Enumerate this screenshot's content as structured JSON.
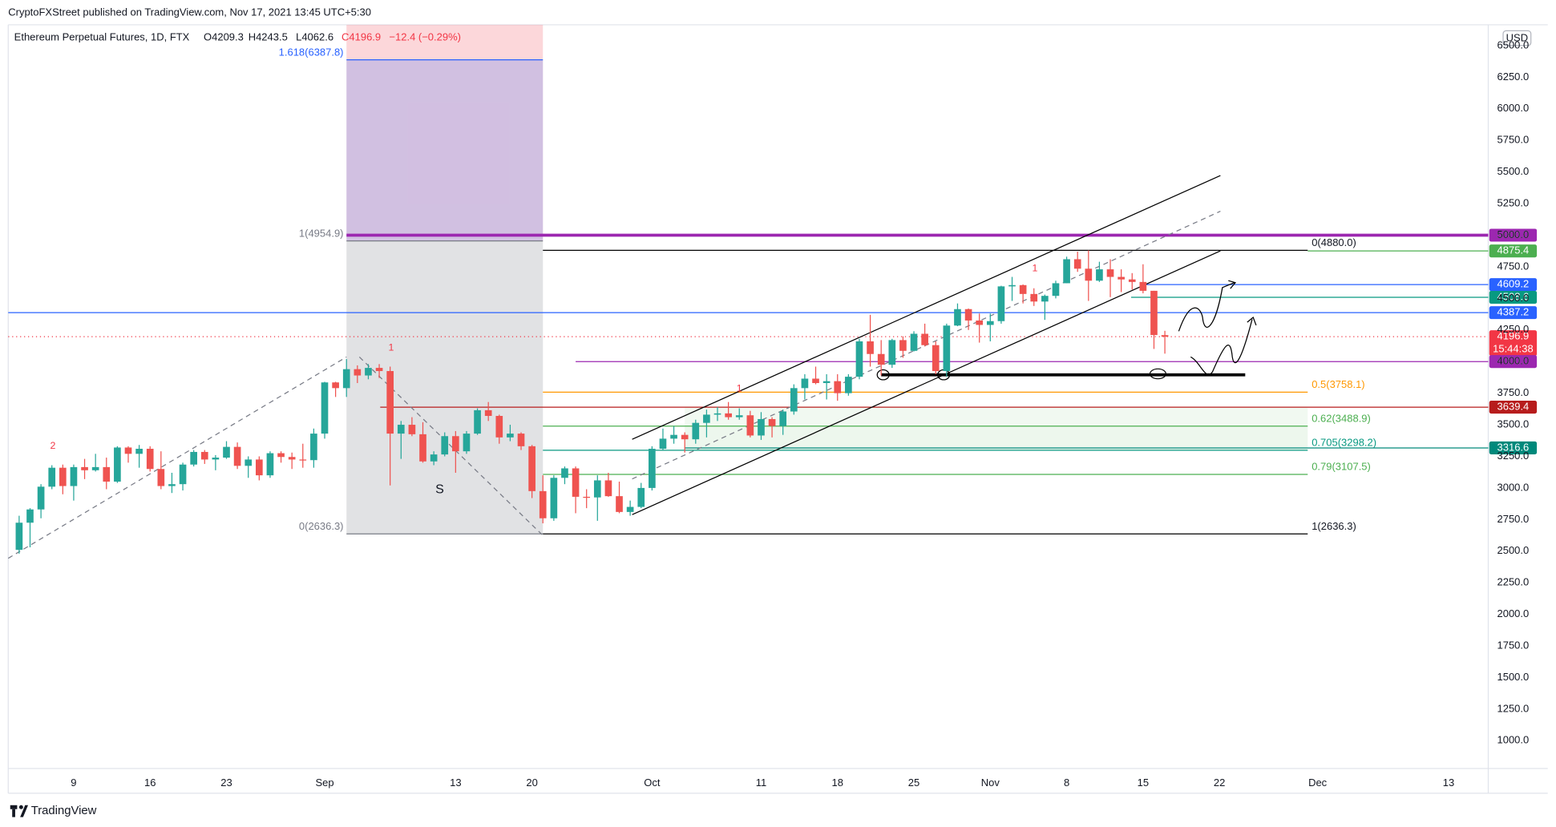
{
  "header": {
    "publisher": "CryptoFXStreet published on TradingView.com, Nov 17, 2021 13:45 UTC+5:30",
    "brand": "TradingView",
    "currency": "USD"
  },
  "chart_data": {
    "type": "candlestick",
    "title": "Ethereum Perpetual Futures, 1D, FTX",
    "ohlc_label": {
      "open": "O4209.3",
      "high": "H4243.5",
      "low": "L4062.6",
      "close": "C4196.9",
      "change": "−12.4 (−0.29%)"
    },
    "up_color": "#26a69a",
    "down_color": "#ef5350",
    "ylim": [
      780,
      6665
    ],
    "yticks": [
      {
        "value": 1000,
        "label": "1000.0"
      },
      {
        "value": 1250,
        "label": "1250.0"
      },
      {
        "value": 1500,
        "label": "1500.0"
      },
      {
        "value": 1750,
        "label": "1750.0"
      },
      {
        "value": 2000,
        "label": "2000.0"
      },
      {
        "value": 2250,
        "label": "2250.0"
      },
      {
        "value": 2500,
        "label": "2500.0"
      },
      {
        "value": 2750,
        "label": "2750.0"
      },
      {
        "value": 3000,
        "label": "3000.0"
      },
      {
        "value": 3250,
        "label": "3250.0"
      },
      {
        "value": 3500,
        "label": "3500.0"
      },
      {
        "value": 3750,
        "label": "3750.0"
      },
      {
        "value": 4000,
        "label": "4000.0"
      },
      {
        "value": 4250,
        "label": "4250.0"
      },
      {
        "value": 4500,
        "label": "4500.0"
      },
      {
        "value": 4750,
        "label": "4750.0"
      },
      {
        "value": 5000,
        "label": "5000.0"
      },
      {
        "value": 5250,
        "label": "5250.0"
      },
      {
        "value": 5500,
        "label": "5500.0"
      },
      {
        "value": 5750,
        "label": "5750.0"
      },
      {
        "value": 6000,
        "label": "6000.0"
      },
      {
        "value": 6250,
        "label": "6250.0"
      },
      {
        "value": 6500,
        "label": "6500.0"
      }
    ],
    "xticks": [
      {
        "value": "2021-08-09",
        "label": "9"
      },
      {
        "value": "2021-08-16",
        "label": "16"
      },
      {
        "value": "2021-08-23",
        "label": "23"
      },
      {
        "value": "2021-09-01",
        "label": "Sep"
      },
      {
        "value": "2021-09-13",
        "label": "13"
      },
      {
        "value": "2021-09-20",
        "label": "20"
      },
      {
        "value": "2021-10-01",
        "label": "Oct"
      },
      {
        "value": "2021-10-11",
        "label": "11"
      },
      {
        "value": "2021-10-18",
        "label": "18"
      },
      {
        "value": "2021-10-25",
        "label": "25"
      },
      {
        "value": "2021-11-01",
        "label": "Nov"
      },
      {
        "value": "2021-11-08",
        "label": "8"
      },
      {
        "value": "2021-11-15",
        "label": "15"
      },
      {
        "value": "2021-11-22",
        "label": "22"
      },
      {
        "value": "2021-12-01",
        "label": "Dec"
      },
      {
        "value": "2021-12-13",
        "label": "13"
      }
    ],
    "x": [
      "2021-08-04",
      "2021-08-05",
      "2021-08-06",
      "2021-08-07",
      "2021-08-08",
      "2021-08-09",
      "2021-08-10",
      "2021-08-11",
      "2021-08-12",
      "2021-08-13",
      "2021-08-14",
      "2021-08-15",
      "2021-08-16",
      "2021-08-17",
      "2021-08-18",
      "2021-08-19",
      "2021-08-20",
      "2021-08-21",
      "2021-08-22",
      "2021-08-23",
      "2021-08-24",
      "2021-08-25",
      "2021-08-26",
      "2021-08-27",
      "2021-08-28",
      "2021-08-29",
      "2021-08-30",
      "2021-08-31",
      "2021-09-01",
      "2021-09-02",
      "2021-09-03",
      "2021-09-04",
      "2021-09-05",
      "2021-09-06",
      "2021-09-07",
      "2021-09-08",
      "2021-09-09",
      "2021-09-10",
      "2021-09-11",
      "2021-09-12",
      "2021-09-13",
      "2021-09-14",
      "2021-09-15",
      "2021-09-16",
      "2021-09-17",
      "2021-09-18",
      "2021-09-19",
      "2021-09-20",
      "2021-09-21",
      "2021-09-22",
      "2021-09-23",
      "2021-09-24",
      "2021-09-25",
      "2021-09-26",
      "2021-09-27",
      "2021-09-28",
      "2021-09-29",
      "2021-09-30",
      "2021-10-01",
      "2021-10-02",
      "2021-10-03",
      "2021-10-04",
      "2021-10-05",
      "2021-10-06",
      "2021-10-07",
      "2021-10-08",
      "2021-10-09",
      "2021-10-10",
      "2021-10-11",
      "2021-10-12",
      "2021-10-13",
      "2021-10-14",
      "2021-10-15",
      "2021-10-16",
      "2021-10-17",
      "2021-10-18",
      "2021-10-19",
      "2021-10-20",
      "2021-10-21",
      "2021-10-22",
      "2021-10-23",
      "2021-10-24",
      "2021-10-25",
      "2021-10-26",
      "2021-10-27",
      "2021-10-28",
      "2021-10-29",
      "2021-10-30",
      "2021-10-31",
      "2021-11-01",
      "2021-11-02",
      "2021-11-03",
      "2021-11-04",
      "2021-11-05",
      "2021-11-06",
      "2021-11-07",
      "2021-11-08",
      "2021-11-09",
      "2021-11-10",
      "2021-11-11",
      "2021-11-12",
      "2021-11-13",
      "2021-11-14",
      "2021-11-15",
      "2021-11-16",
      "2021-11-17"
    ],
    "ohlc": [
      [
        2510,
        2780,
        2480,
        2725
      ],
      [
        2725,
        2840,
        2530,
        2830
      ],
      [
        2830,
        3030,
        2760,
        3010
      ],
      [
        3010,
        3180,
        2990,
        3160
      ],
      [
        3160,
        3185,
        2950,
        3015
      ],
      [
        3015,
        3185,
        2900,
        3165
      ],
      [
        3165,
        3230,
        3070,
        3140
      ],
      [
        3140,
        3270,
        3130,
        3165
      ],
      [
        3165,
        3240,
        2990,
        3050
      ],
      [
        3050,
        3330,
        3040,
        3320
      ],
      [
        3320,
        3330,
        3200,
        3270
      ],
      [
        3270,
        3340,
        3160,
        3310
      ],
      [
        3310,
        3330,
        3130,
        3150
      ],
      [
        3150,
        3290,
        2990,
        3015
      ],
      [
        3015,
        3120,
        2960,
        3030
      ],
      [
        3030,
        3200,
        2980,
        3185
      ],
      [
        3185,
        3300,
        3170,
        3285
      ],
      [
        3285,
        3300,
        3190,
        3225
      ],
      [
        3225,
        3260,
        3140,
        3240
      ],
      [
        3240,
        3370,
        3230,
        3325
      ],
      [
        3325,
        3360,
        3150,
        3175
      ],
      [
        3175,
        3250,
        3080,
        3225
      ],
      [
        3225,
        3250,
        3060,
        3100
      ],
      [
        3100,
        3290,
        3080,
        3275
      ],
      [
        3275,
        3290,
        3200,
        3245
      ],
      [
        3245,
        3280,
        3150,
        3225
      ],
      [
        3225,
        3350,
        3160,
        3220
      ],
      [
        3220,
        3470,
        3160,
        3430
      ],
      [
        3430,
        3840,
        3390,
        3835
      ],
      [
        3835,
        3840,
        3720,
        3790
      ],
      [
        3790,
        4020,
        3720,
        3940
      ],
      [
        3940,
        3970,
        3830,
        3890
      ],
      [
        3890,
        3980,
        3860,
        3950
      ],
      [
        3950,
        3980,
        3870,
        3925
      ],
      [
        3925,
        3960,
        3020,
        3430
      ],
      [
        3430,
        3530,
        3230,
        3500
      ],
      [
        3500,
        3560,
        3410,
        3425
      ],
      [
        3425,
        3520,
        3200,
        3210
      ],
      [
        3210,
        3290,
        3180,
        3265
      ],
      [
        3265,
        3440,
        3250,
        3410
      ],
      [
        3410,
        3450,
        3120,
        3290
      ],
      [
        3290,
        3450,
        3270,
        3430
      ],
      [
        3430,
        3630,
        3420,
        3615
      ],
      [
        3615,
        3680,
        3530,
        3570
      ],
      [
        3570,
        3580,
        3350,
        3400
      ],
      [
        3400,
        3500,
        3370,
        3430
      ],
      [
        3430,
        3440,
        3300,
        3330
      ],
      [
        3330,
        3340,
        2920,
        2975
      ],
      [
        2975,
        3100,
        2720,
        2760
      ],
      [
        2760,
        3100,
        2740,
        3080
      ],
      [
        3080,
        3170,
        3030,
        3155
      ],
      [
        3155,
        3170,
        2800,
        2930
      ],
      [
        2930,
        2990,
        2840,
        2925
      ],
      [
        2925,
        3100,
        2740,
        3060
      ],
      [
        3060,
        3120,
        2930,
        2935
      ],
      [
        2935,
        3050,
        2800,
        2810
      ],
      [
        2810,
        2900,
        2780,
        2850
      ],
      [
        2850,
        3040,
        2840,
        3000
      ],
      [
        3000,
        3330,
        2980,
        3310
      ],
      [
        3310,
        3470,
        3300,
        3390
      ],
      [
        3390,
        3490,
        3350,
        3420
      ],
      [
        3420,
        3440,
        3280,
        3385
      ],
      [
        3385,
        3540,
        3350,
        3515
      ],
      [
        3515,
        3620,
        3400,
        3580
      ],
      [
        3580,
        3640,
        3530,
        3590
      ],
      [
        3590,
        3680,
        3540,
        3560
      ],
      [
        3560,
        3630,
        3540,
        3575
      ],
      [
        3575,
        3610,
        3400,
        3415
      ],
      [
        3415,
        3600,
        3380,
        3545
      ],
      [
        3545,
        3560,
        3400,
        3490
      ],
      [
        3490,
        3620,
        3420,
        3605
      ],
      [
        3605,
        3820,
        3580,
        3790
      ],
      [
        3790,
        3900,
        3700,
        3865
      ],
      [
        3865,
        3960,
        3820,
        3830
      ],
      [
        3830,
        3900,
        3700,
        3845
      ],
      [
        3845,
        3900,
        3690,
        3750
      ],
      [
        3750,
        3900,
        3730,
        3880
      ],
      [
        3880,
        4180,
        3860,
        4160
      ],
      [
        4160,
        4370,
        3960,
        4060
      ],
      [
        4060,
        4170,
        3890,
        3975
      ],
      [
        3975,
        4180,
        3950,
        4170
      ],
      [
        4170,
        4200,
        4030,
        4085
      ],
      [
        4085,
        4240,
        4080,
        4220
      ],
      [
        4220,
        4300,
        4120,
        4130
      ],
      [
        4130,
        4160,
        3900,
        3925
      ],
      [
        3925,
        4300,
        3880,
        4285
      ],
      [
        4285,
        4460,
        4280,
        4415
      ],
      [
        4415,
        4420,
        4250,
        4325
      ],
      [
        4325,
        4380,
        4150,
        4290
      ],
      [
        4290,
        4380,
        4160,
        4320
      ],
      [
        4320,
        4600,
        4300,
        4595
      ],
      [
        4595,
        4670,
        4480,
        4605
      ],
      [
        4605,
        4610,
        4460,
        4535
      ],
      [
        4535,
        4580,
        4440,
        4475
      ],
      [
        4475,
        4530,
        4330,
        4520
      ],
      [
        4520,
        4640,
        4500,
        4620
      ],
      [
        4620,
        4830,
        4620,
        4810
      ],
      [
        4810,
        4870,
        4710,
        4735
      ],
      [
        4735,
        4880,
        4480,
        4640
      ],
      [
        4640,
        4790,
        4630,
        4730
      ],
      [
        4730,
        4810,
        4510,
        4670
      ],
      [
        4670,
        4730,
        4550,
        4650
      ],
      [
        4650,
        4700,
        4570,
        4630
      ],
      [
        4630,
        4770,
        4540,
        4560
      ],
      [
        4560,
        4560,
        4100,
        4210
      ],
      [
        4209.3,
        4243.5,
        4062.6,
        4196.9
      ]
    ],
    "levels": [
      {
        "value": 5000,
        "label": "5000.0",
        "color": "#9c27b0"
      },
      {
        "value": 4875.4,
        "label": "4875.4",
        "color": "#4caf50"
      },
      {
        "value": 4609.2,
        "label": "4609.2",
        "color": "#2962ff"
      },
      {
        "value": 4508.6,
        "label": "4508.6",
        "color": "#089981"
      },
      {
        "value": 4387.2,
        "label": "4387.2",
        "color": "#2962ff"
      },
      {
        "value": 4196.9,
        "label": "4196.9",
        "timer": "15:44:38",
        "color": "#f23645"
      },
      {
        "value": 4000,
        "label": "4000.0",
        "color": "#9c27b0"
      },
      {
        "value": 3639.4,
        "label": "3639.4",
        "color": "#b71c1c"
      },
      {
        "value": 3316.6,
        "label": "3316.6",
        "color": "#00897b"
      }
    ],
    "fib_retracement": [
      {
        "value": 4880,
        "label": "0(4880.0)",
        "color": "#000000"
      },
      {
        "value": 3758.1,
        "label": "0.5(3758.1)",
        "color": "#ff9800"
      },
      {
        "value": 3488.9,
        "label": "0.62(3488.9)",
        "color": "#4caf50"
      },
      {
        "value": 3298.2,
        "label": "0.705(3298.2)",
        "color": "#089981"
      },
      {
        "value": 3107.5,
        "label": "0.79(3107.5)",
        "color": "#4caf50"
      },
      {
        "value": 2636.3,
        "label": "1(2636.3)",
        "color": "#000000"
      }
    ],
    "fib_extension": [
      {
        "value": 6387.8,
        "label": "1.618(6387.8)",
        "color": "#2962ff"
      },
      {
        "value": 4954.9,
        "label": "1(4954.9)",
        "color": "#787b86"
      },
      {
        "value": 2636.3,
        "label": "0(2636.3)",
        "color": "#787b86"
      }
    ],
    "annotations": [
      "2",
      "1",
      "1",
      "1",
      "S"
    ]
  }
}
